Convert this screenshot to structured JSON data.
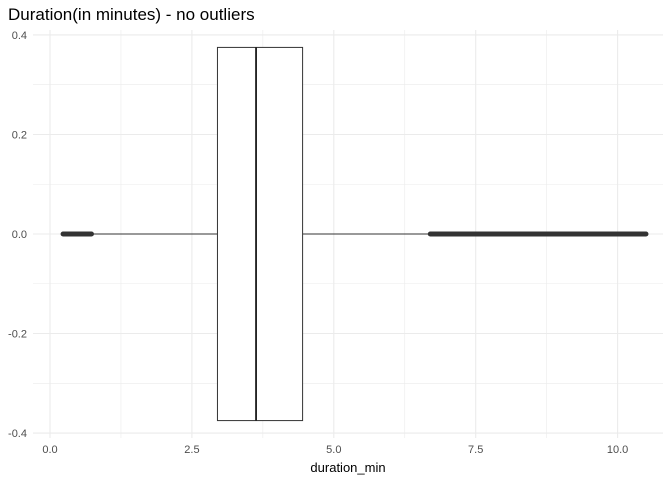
{
  "chart_data": {
    "type": "boxplot",
    "title": "Duration(in minutes) - no outliers",
    "xlabel": "duration_min",
    "ylabel": "",
    "xlim": [
      -0.3,
      10.8
    ],
    "ylim": [
      -0.41,
      0.41
    ],
    "x_ticks": [
      0.0,
      2.5,
      5.0,
      7.5,
      10.0
    ],
    "x_tick_labels": [
      "0.0",
      "2.5",
      "5.0",
      "7.5",
      "10.0"
    ],
    "y_ticks": [
      0.4,
      0.2,
      0.0,
      -0.2,
      -0.4
    ],
    "y_tick_labels": [
      "0.4",
      "0.2",
      "0.0",
      "-0.2",
      "-0.4"
    ],
    "grid": true,
    "orientation": "horizontal",
    "box": {
      "q1": 2.95,
      "median": 3.63,
      "q3": 4.45,
      "whisker_low": 0.23,
      "whisker_high": 10.5,
      "y_center": 0.0,
      "half_height": 0.375
    },
    "dense_point_ranges": [
      [
        0.23,
        0.73
      ],
      [
        6.7,
        10.5
      ]
    ]
  },
  "colors": {
    "grid": "#ebebeb",
    "box_stroke": "#333333",
    "points": "#333333",
    "tick_text": "#4d4d4d"
  }
}
